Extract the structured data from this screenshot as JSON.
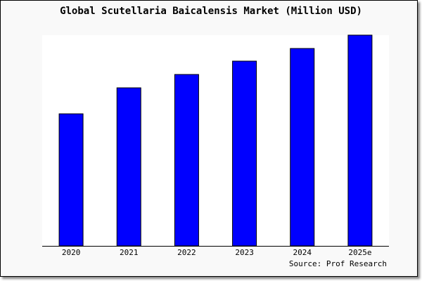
{
  "chart_data": {
    "type": "bar",
    "title": "Global Scutellaria Baicalensis Market (Million USD)",
    "categories": [
      "2020",
      "2021",
      "2022",
      "2023",
      "2024",
      "2025e"
    ],
    "values": [
      188,
      225,
      244,
      263,
      281,
      300
    ],
    "ylim": [
      0,
      300
    ],
    "xlabel": "",
    "ylabel": "",
    "grid": false,
    "bar_color": "#0000ff",
    "source": "Source: Prof Research"
  }
}
